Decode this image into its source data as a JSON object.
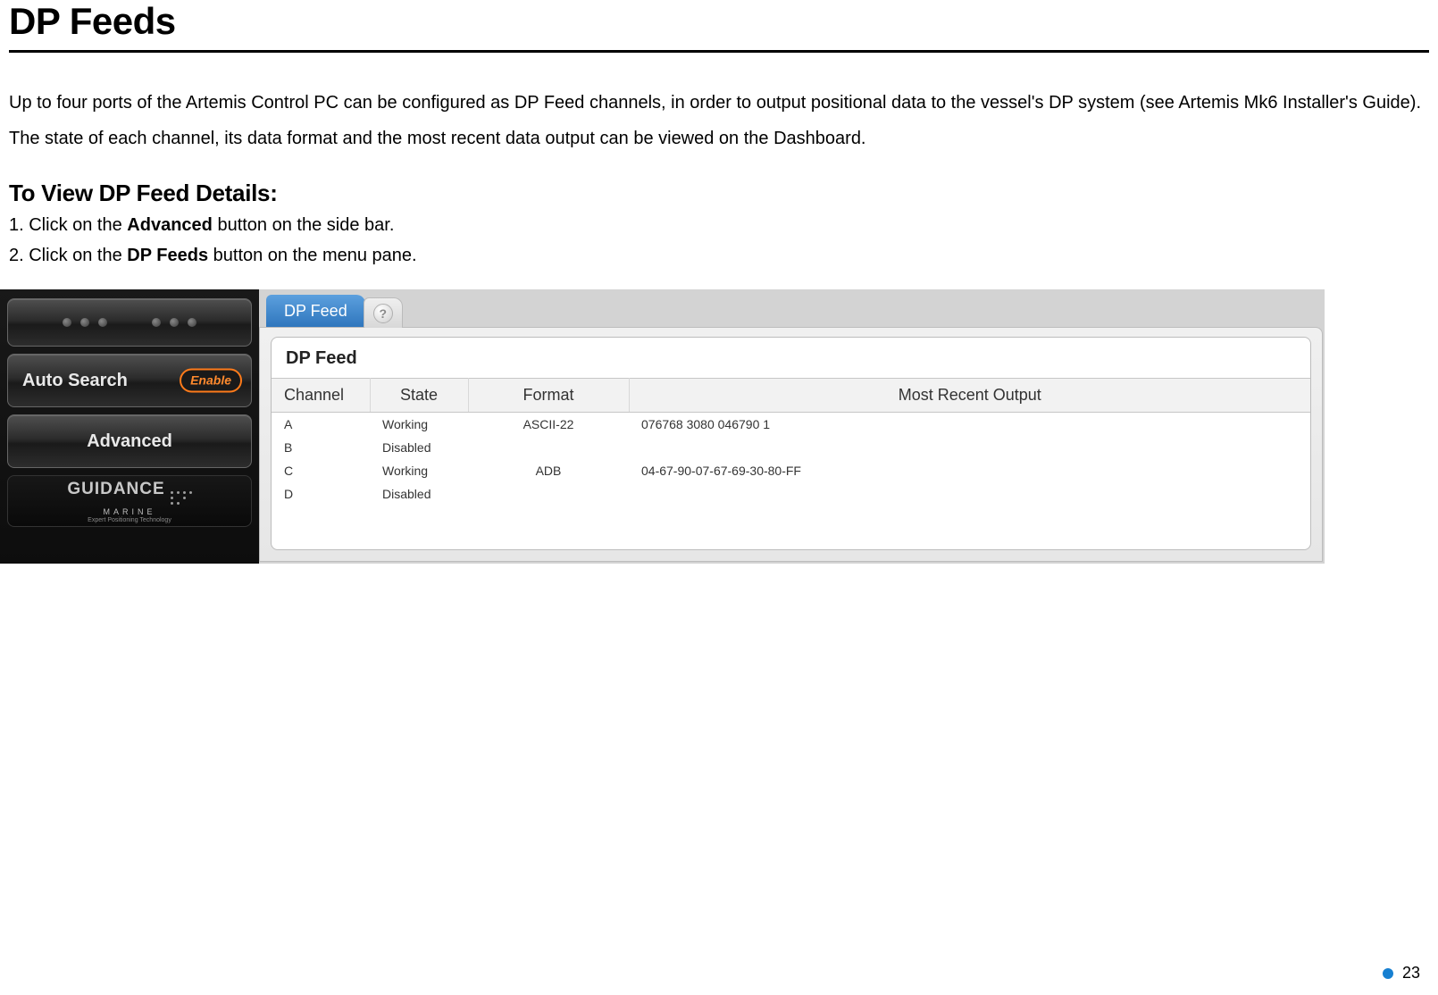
{
  "page": {
    "title": "DP Feeds",
    "intro_line1": "Up to four ports of the Artemis Control PC can be configured as DP Feed channels, in order to output positional data to the vessel's DP system (see Artemis Mk6 Installer's Guide).",
    "intro_line2": "The state of each channel, its data format and the most recent data output can be viewed on the Dashboard.",
    "subhead": "To View DP Feed Details:",
    "step1_pre": "1. Click on the ",
    "step1_bold": "Advanced",
    "step1_post": " button on the side bar.",
    "step2_pre": "2. Click on the ",
    "step2_bold": "DP Feeds",
    "step2_post": " button on the menu pane.",
    "page_number": "23"
  },
  "sidebar": {
    "auto_search_label": "Auto Search",
    "enable_label": "Enable",
    "advanced_label": "Advanced",
    "brand_word": "GUIDANCE",
    "brand_sub1": "MARINE",
    "brand_sub2": "Expert Positioning Technology"
  },
  "panel": {
    "tab_label": "DP Feed",
    "help_glyph": "?",
    "card_title": "DP Feed",
    "table": {
      "columns": [
        "Channel",
        "State",
        "Format",
        "Most Recent Output"
      ],
      "rows": [
        {
          "channel": "A",
          "state": "Working",
          "format": "ASCII-22",
          "output": "076768 3080 046790 1"
        },
        {
          "channel": "B",
          "state": "Disabled",
          "format": "",
          "output": ""
        },
        {
          "channel": "C",
          "state": "Working",
          "format": "ADB",
          "output": "04-67-90-07-67-69-30-80-FF"
        },
        {
          "channel": "D",
          "state": "Disabled",
          "format": "",
          "output": ""
        }
      ],
      "header_bg": "#f2f2f2",
      "border_color": "#c6c6c6"
    }
  },
  "colors": {
    "tab_gradient_top": "#5ca0de",
    "tab_gradient_bottom": "#2f76bd",
    "enable_border": "#ff7b1a",
    "footer_bullet": "#1780d1"
  }
}
